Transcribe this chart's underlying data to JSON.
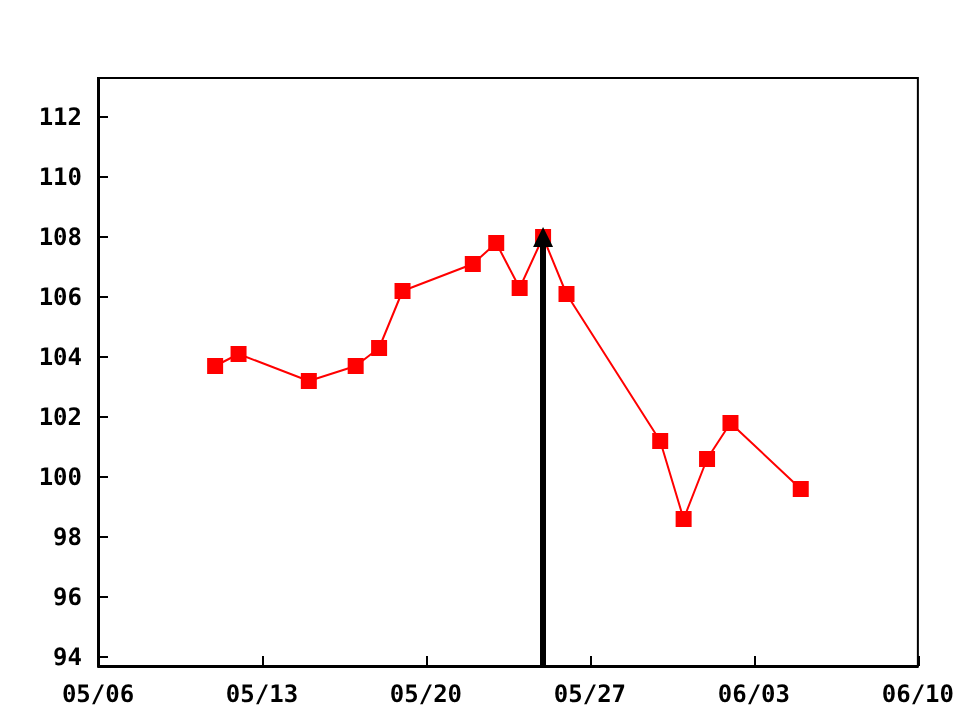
{
  "chart_data": {
    "type": "line",
    "x": [
      "--05-11",
      "--05-12",
      "--05-15",
      "--05-17",
      "--05-18",
      "--05-19",
      "--05-22",
      "--05-23",
      "--05-24",
      "--05-25",
      "--05-26",
      "--05-30",
      "--05-31",
      "--06-01",
      "--06-02",
      "--06-05"
    ],
    "series": [
      {
        "color": "#ff0000",
        "values": [
          103.7,
          104.1,
          103.2,
          103.7,
          104.3,
          106.2,
          107.1,
          107.8,
          106.3,
          108.0,
          106.1,
          101.2,
          98.6,
          100.6,
          101.8,
          99.6
        ]
      }
    ],
    "xlim": [
      "--05-06",
      "--06-10"
    ],
    "xticks": [
      {
        "value": "--05-06",
        "label": "05/06"
      },
      {
        "value": "--05-13",
        "label": "05/13"
      },
      {
        "value": "--05-20",
        "label": "05/20"
      },
      {
        "value": "--05-27",
        "label": "05/27"
      },
      {
        "value": "--06-03",
        "label": "06/03"
      },
      {
        "value": "--06-10",
        "label": "06/10"
      }
    ],
    "ylim": [
      93.7,
      113.3
    ],
    "yticks": [
      94,
      96,
      98,
      100,
      102,
      104,
      106,
      108,
      110,
      112
    ],
    "ref_lines": [
      {
        "axis": "x",
        "value": "--05-25",
        "color": "#000000"
      }
    ],
    "marker": "square",
    "line_style": "solid",
    "grid": false
  }
}
